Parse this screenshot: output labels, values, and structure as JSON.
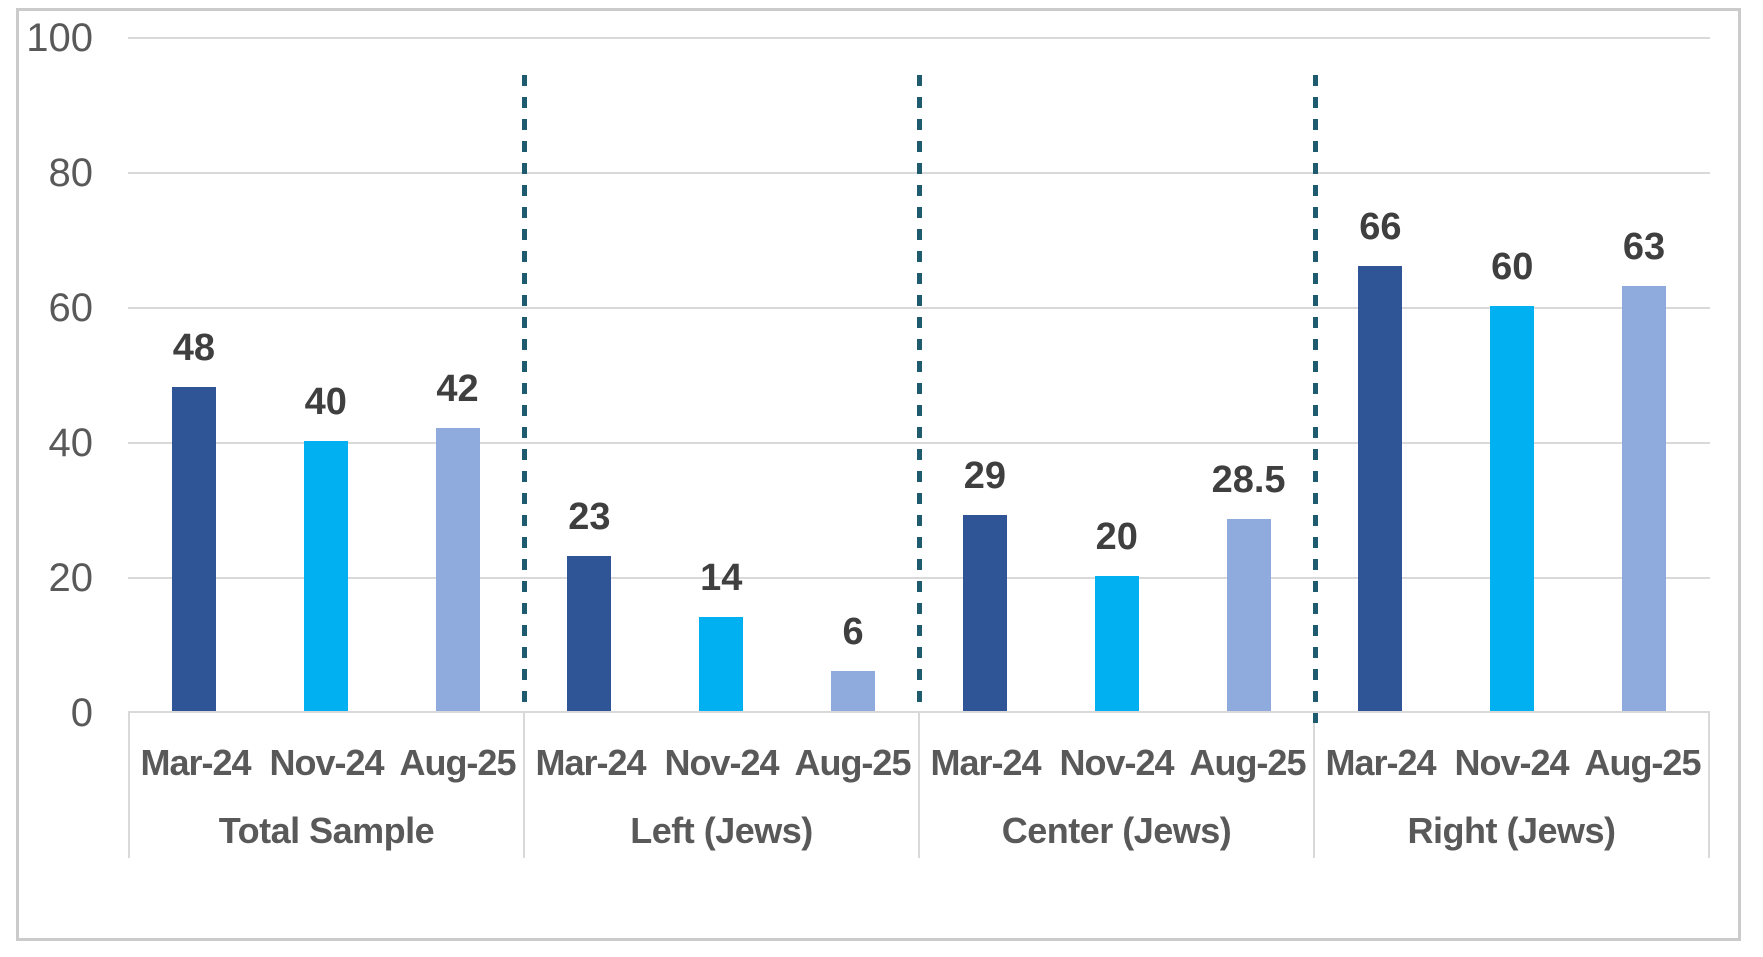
{
  "chart_data": {
    "type": "bar",
    "title": "",
    "xlabel": "",
    "ylabel": "",
    "ylim": [
      0,
      100
    ],
    "yticks": [
      "100",
      "80",
      "60",
      "40",
      "20",
      "0"
    ],
    "grid": true,
    "legend": "none",
    "categories": [
      "Total Sample",
      "Left (Jews)",
      "Center (Jews)",
      "Right (Jews)"
    ],
    "sub_categories": [
      "Mar-24",
      "Nov-24",
      "Aug-25"
    ],
    "series": [
      {
        "name": "Mar-24",
        "color": "#2F5597",
        "values": [
          48,
          23,
          29,
          66
        ]
      },
      {
        "name": "Nov-24",
        "color": "#00B0F0",
        "values": [
          40,
          14,
          20,
          60
        ]
      },
      {
        "name": "Aug-25",
        "color": "#8FAADC",
        "values": [
          42,
          6,
          28.5,
          63
        ]
      }
    ],
    "groups": [
      {
        "label": "Total Sample",
        "bars": [
          {
            "period": "Mar-24",
            "value": 48,
            "display": "48"
          },
          {
            "period": "Nov-24",
            "value": 40,
            "display": "40"
          },
          {
            "period": "Aug-25",
            "value": 42,
            "display": "42"
          }
        ]
      },
      {
        "label": "Left (Jews)",
        "bars": [
          {
            "period": "Mar-24",
            "value": 23,
            "display": "23"
          },
          {
            "period": "Nov-24",
            "value": 14,
            "display": "14"
          },
          {
            "period": "Aug-25",
            "value": 6,
            "display": "6"
          }
        ]
      },
      {
        "label": "Center (Jews)",
        "bars": [
          {
            "period": "Mar-24",
            "value": 29,
            "display": "29"
          },
          {
            "period": "Nov-24",
            "value": 20,
            "display": "20"
          },
          {
            "period": "Aug-25",
            "value": 28.5,
            "display": "28.5"
          }
        ]
      },
      {
        "label": "Right (Jews)",
        "bars": [
          {
            "period": "Mar-24",
            "value": 66,
            "display": "66"
          },
          {
            "period": "Nov-24",
            "value": 60,
            "display": "60"
          },
          {
            "period": "Aug-25",
            "value": 63,
            "display": "63"
          }
        ]
      }
    ],
    "separators": {
      "style": "dashed",
      "color": "#1E5B6F",
      "positions": "between-groups"
    },
    "palette": {
      "bar_colors": [
        "#2F5597",
        "#00B0F0",
        "#8FAADC"
      ],
      "gridline": "#D9D9D9",
      "frame_border": "#CBCBCB",
      "tick_text": "#595959",
      "category_text": "#595959",
      "value_label_text": "#3F3F3F"
    }
  }
}
